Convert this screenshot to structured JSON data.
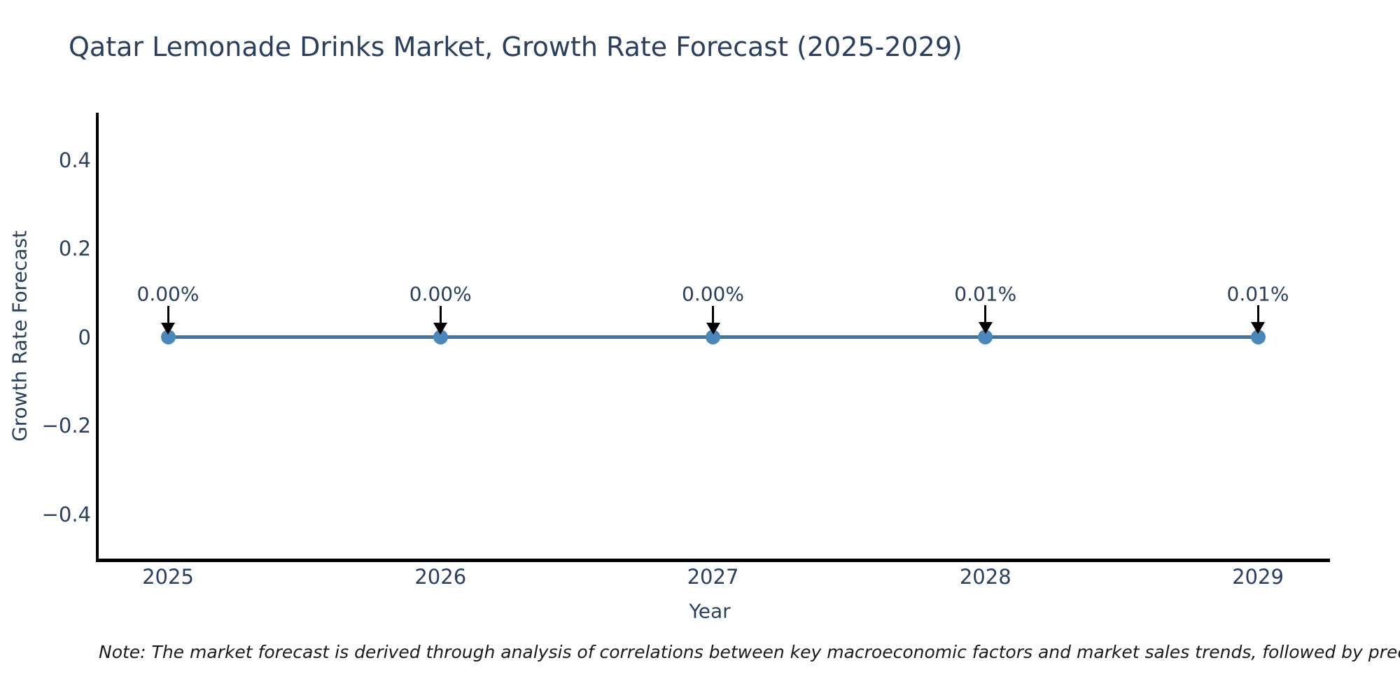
{
  "note": "Note: The market forecast is derived through analysis of correlations between key macroeconomic factors and market sales trends, followed by predictive modeling to project future sa",
  "colors": {
    "title_text": "#2a3f5f",
    "axis_text": "#2a3f5f",
    "axis_line": "#000000",
    "series_line": "#3d74a8",
    "marker_fill": "#4a87ba",
    "annotation_arrow": "#000000",
    "note_text": "#1a1a1a",
    "background": "#ffffff"
  },
  "chart_data": {
    "type": "line",
    "title": "Qatar Lemonade Drinks Market, Growth Rate Forecast (2025-2029)",
    "xlabel": "Year",
    "ylabel": "Growth Rate Forecast",
    "x": [
      2025,
      2026,
      2027,
      2028,
      2029
    ],
    "y": [
      0.0,
      0.0,
      0.0,
      0.0001,
      0.0001
    ],
    "point_labels": [
      "0.00%",
      "0.00%",
      "0.00%",
      "0.01%",
      "0.01%"
    ],
    "x_tick_labels": [
      "2025",
      "2026",
      "2027",
      "2028",
      "2029"
    ],
    "y_tick_labels": [
      "0.4",
      "0.2",
      "0",
      "−0.2",
      "−0.4"
    ],
    "y_tick_values": [
      0.4,
      0.2,
      0,
      -0.2,
      -0.4
    ],
    "xlim": [
      2024.74,
      2029.26
    ],
    "ylim": [
      -0.507,
      0.507
    ],
    "grid": false,
    "legend": false,
    "markers": true,
    "annotations_arrows": true
  }
}
